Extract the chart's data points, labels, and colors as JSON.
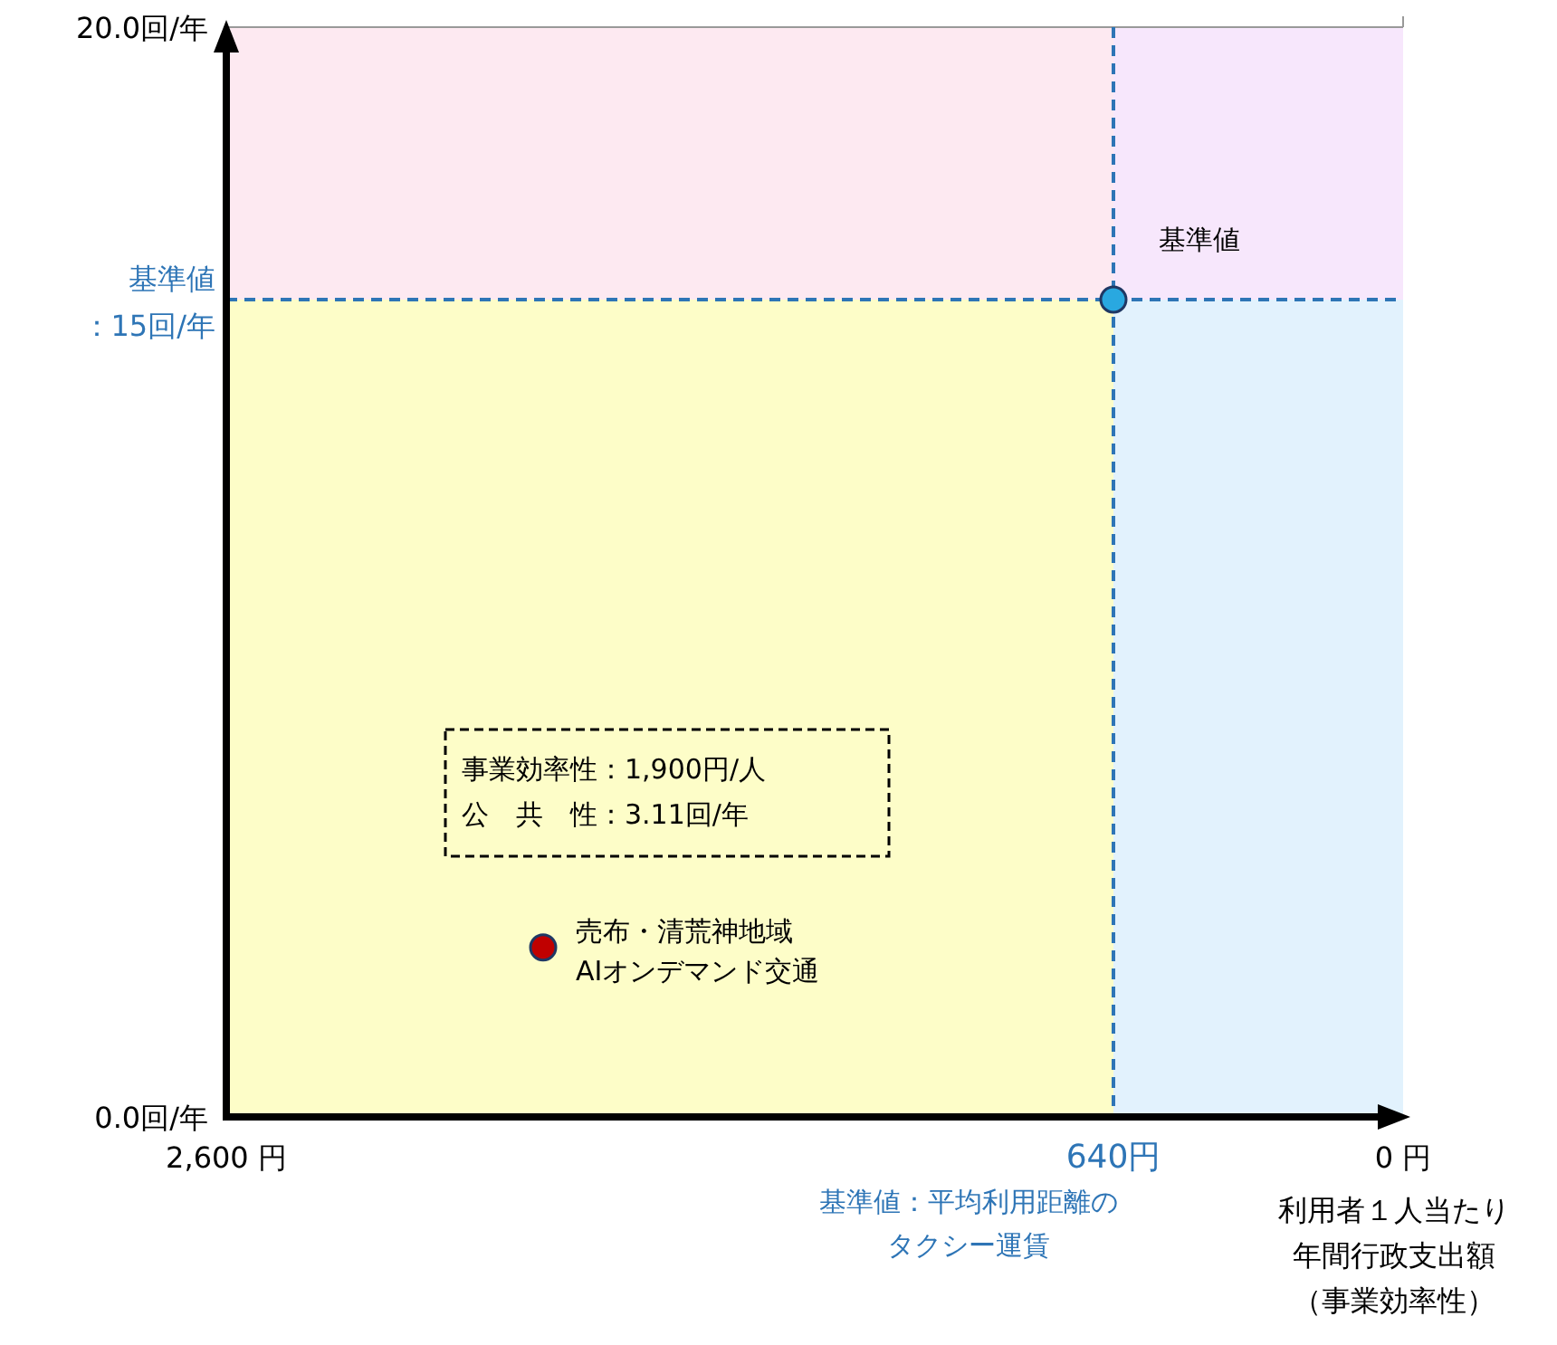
{
  "chart_data": {
    "type": "scatter",
    "xlabel": "利用者１人当たり年間行政支出額（事業効率性）",
    "xlim": [
      2600,
      0
    ],
    "ylim": [
      0,
      20
    ],
    "xticks": [
      {
        "value": 2600,
        "label": "2,600 円"
      },
      {
        "value": 640,
        "label": "640円"
      },
      {
        "value": 0,
        "label": "0 円"
      }
    ],
    "yticks": [
      {
        "value": 0,
        "label": "0.0回/年"
      },
      {
        "value": 20,
        "label": "20.0回/年"
      }
    ],
    "grid": false,
    "marker": "circle",
    "bands": [
      {
        "axis": "x",
        "from": 2600,
        "to": 640,
        "color": "#fdfdc8"
      },
      {
        "axis": "x",
        "from": 640,
        "to": 0,
        "color": "#e2f2fd"
      },
      {
        "axis": "y",
        "from": 15,
        "to": 20,
        "color": "#fde4fb"
      }
    ],
    "ref_lines": [
      {
        "axis": "y",
        "value": 15,
        "label": "基準値：15回/年",
        "color": "#2e75b6",
        "line_style": "dashed"
      },
      {
        "axis": "x",
        "value": 640,
        "label": "基準値：平均利用距離のタクシー運賃",
        "color": "#2e75b6",
        "line_style": "dashed"
      }
    ],
    "series": [
      {
        "name": "基準値",
        "color": "#29a8e0",
        "x": [
          640
        ],
        "values": [
          15
        ]
      },
      {
        "name": "売布・清荒神地域AIオンデマンド交通",
        "color": "#c00000",
        "x": [
          1900
        ],
        "values": [
          3.11
        ]
      }
    ],
    "annotations": [
      "事業効率性：1,900円/人",
      "公　共　性：3.11回/年"
    ]
  }
}
